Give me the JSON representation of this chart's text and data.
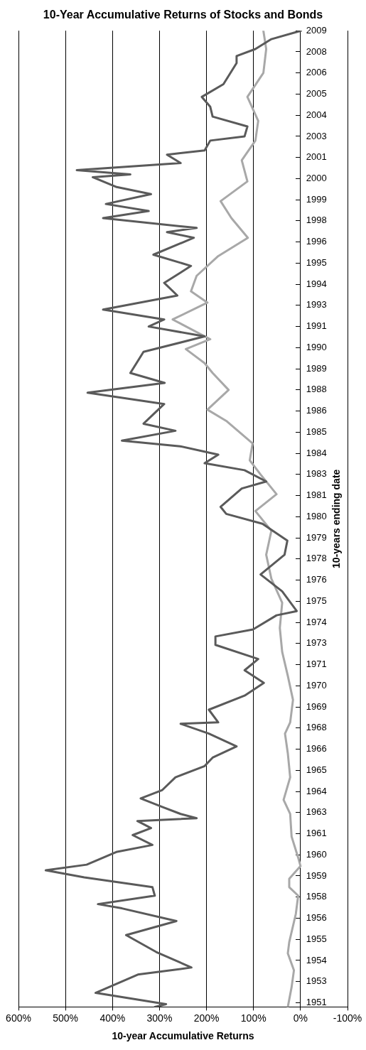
{
  "chart_data": {
    "type": "line",
    "orientation": "horizontal",
    "title": "10-Year Accumulative Returns of Stocks and Bonds",
    "ylabel": "10-years ending date",
    "xlabel": "10-year Accumulative Returns",
    "grid": "x",
    "legend": false,
    "marker": "none",
    "line_style": "solid",
    "ylim": [
      "1951-09",
      "2009-06"
    ],
    "yticks": [
      {
        "value": "1951-12",
        "label": "1951"
      },
      {
        "value": "1953-03",
        "label": "1953"
      },
      {
        "value": "1954-06",
        "label": "1954"
      },
      {
        "value": "1955-09",
        "label": "1955"
      },
      {
        "value": "1956-12",
        "label": "1956"
      },
      {
        "value": "1958-03",
        "label": "1958"
      },
      {
        "value": "1959-06",
        "label": "1959"
      },
      {
        "value": "1960-09",
        "label": "1960"
      },
      {
        "value": "1961-12",
        "label": "1961"
      },
      {
        "value": "1963-03",
        "label": "1963"
      },
      {
        "value": "1964-06",
        "label": "1964"
      },
      {
        "value": "1965-09",
        "label": "1965"
      },
      {
        "value": "1966-12",
        "label": "1966"
      },
      {
        "value": "1968-03",
        "label": "1968"
      },
      {
        "value": "1969-06",
        "label": "1969"
      },
      {
        "value": "1970-09",
        "label": "1970"
      },
      {
        "value": "1971-12",
        "label": "1971"
      },
      {
        "value": "1973-03",
        "label": "1973"
      },
      {
        "value": "1974-06",
        "label": "1974"
      },
      {
        "value": "1975-09",
        "label": "1975"
      },
      {
        "value": "1976-12",
        "label": "1976"
      },
      {
        "value": "1978-03",
        "label": "1978"
      },
      {
        "value": "1979-06",
        "label": "1979"
      },
      {
        "value": "1980-09",
        "label": "1980"
      },
      {
        "value": "1981-12",
        "label": "1981"
      },
      {
        "value": "1983-03",
        "label": "1983"
      },
      {
        "value": "1984-06",
        "label": "1984"
      },
      {
        "value": "1985-09",
        "label": "1985"
      },
      {
        "value": "1986-12",
        "label": "1986"
      },
      {
        "value": "1988-03",
        "label": "1988"
      },
      {
        "value": "1989-06",
        "label": "1989"
      },
      {
        "value": "1990-09",
        "label": "1990"
      },
      {
        "value": "1991-12",
        "label": "1991"
      },
      {
        "value": "1993-03",
        "label": "1993"
      },
      {
        "value": "1994-06",
        "label": "1994"
      },
      {
        "value": "1995-09",
        "label": "1995"
      },
      {
        "value": "1996-12",
        "label": "1996"
      },
      {
        "value": "1998-03",
        "label": "1998"
      },
      {
        "value": "1999-06",
        "label": "1999"
      },
      {
        "value": "2000-09",
        "label": "2000"
      },
      {
        "value": "2001-12",
        "label": "2001"
      },
      {
        "value": "2003-03",
        "label": "2003"
      },
      {
        "value": "2004-06",
        "label": "2004"
      },
      {
        "value": "2005-09",
        "label": "2005"
      },
      {
        "value": "2006-12",
        "label": "2006"
      },
      {
        "value": "2008-03",
        "label": "2008"
      },
      {
        "value": "2009-06",
        "label": "2009"
      }
    ],
    "xlim": [
      600,
      -100
    ],
    "xticks": [
      {
        "value": 600,
        "label": "600%"
      },
      {
        "value": 500,
        "label": "500%"
      },
      {
        "value": 400,
        "label": "400%"
      },
      {
        "value": 300,
        "label": "300%"
      },
      {
        "value": 200,
        "label": "200%"
      },
      {
        "value": 100,
        "label": "100%"
      },
      {
        "value": 0,
        "label": "0%"
      },
      {
        "value": -100,
        "label": "-100%"
      }
    ],
    "series": [
      {
        "color": "#5a5a5a",
        "x": [
          "1951-09",
          "1951-11",
          "1952-07",
          "1953-08",
          "1954-01",
          "1954-12",
          "1955-12",
          "1956-10",
          "1957-07",
          "1957-10",
          "1958-04",
          "1958-10",
          "1959-05",
          "1959-10",
          "1960-02",
          "1960-11",
          "1961-04",
          "1961-11",
          "1962-04",
          "1962-09",
          "1962-11",
          "1963-02",
          "1963-07",
          "1964-01",
          "1964-07",
          "1965-04",
          "1965-12",
          "1966-06",
          "1967-02",
          "1967-11",
          "1968-06",
          "1968-07",
          "1969-04",
          "1970-02",
          "1970-11",
          "1971-08",
          "1972-04",
          "1973-02",
          "1973-08",
          "1974-01",
          "1974-11",
          "1975-02",
          "1976-04",
          "1977-04",
          "1978-06",
          "1979-04",
          "1980-04",
          "1980-11",
          "1981-04",
          "1982-05",
          "1982-10",
          "1983-06",
          "1983-11",
          "1984-05",
          "1984-11",
          "1985-03",
          "1985-10",
          "1986-03",
          "1987-05",
          "1988-01",
          "1988-08",
          "1989-03",
          "1990-06",
          "1991-05",
          "1991-12",
          "1992-05",
          "1992-12",
          "1993-10",
          "1994-07",
          "1995-07",
          "1996-03",
          "1997-03",
          "1997-07",
          "1997-10",
          "1998-05",
          "1998-10",
          "1999-03",
          "1999-10",
          "2000-03",
          "2000-10",
          "2000-12",
          "2001-03",
          "2001-08",
          "2002-02",
          "2002-05",
          "2002-12",
          "2003-03",
          "2003-10",
          "2004-05",
          "2004-12",
          "2005-07",
          "2006-04",
          "2007-07",
          "2007-12",
          "2008-05",
          "2008-12",
          "2009-06"
        ],
        "values": [
          310,
          286,
          436,
          346,
          232,
          307,
          371,
          264,
          380,
          431,
          310,
          315,
          460,
          542,
          455,
          392,
          315,
          357,
          318,
          347,
          221,
          255,
          294,
          340,
          294,
          266,
          204,
          187,
          136,
          195,
          255,
          175,
          195,
          119,
          78,
          119,
          90,
          181,
          181,
          101,
          51,
          8,
          39,
          85,
          34,
          28,
          81,
          158,
          170,
          125,
          73,
          119,
          204,
          175,
          256,
          380,
          266,
          334,
          290,
          453,
          289,
          362,
          334,
          204,
          323,
          290,
          420,
          262,
          290,
          233,
          313,
          227,
          284,
          221,
          420,
          323,
          414,
          318,
          391,
          442,
          362,
          476,
          255,
          284,
          204,
          192,
          119,
          113,
          187,
          192,
          210,
          164,
          136,
          136,
          96,
          62,
          -1
        ]
      },
      {
        "color": "#a8a8a8",
        "x": [
          "1951-09",
          "1952-11",
          "1953-11",
          "1954-11",
          "1955-07",
          "1957-03",
          "1958-04",
          "1958-10",
          "1959-04",
          "1960-01",
          "1960-07",
          "1961-10",
          "1963-02",
          "1963-12",
          "1965-04",
          "1966-09",
          "1967-11",
          "1968-07",
          "1969-11",
          "1971-04",
          "1972-09",
          "1974-02",
          "1975-08",
          "1977-01",
          "1978-06",
          "1979-11",
          "1981-01",
          "1982-01",
          "1983-03",
          "1984-01",
          "1985-01",
          "1986-05",
          "1987-01",
          "1988-03",
          "1989-03",
          "1989-10",
          "1990-08",
          "1991-03",
          "1992-05",
          "1993-05",
          "1994-01",
          "1994-12",
          "1996-02",
          "1997-03",
          "1998-05",
          "1999-05",
          "2000-07",
          "2001-10",
          "2002-12",
          "2004-02",
          "2005-07",
          "2006-12",
          "2008-05",
          "2009-06"
        ],
        "values": [
          27,
          19,
          14,
          27,
          24,
          10,
          5,
          24,
          24,
          0,
          5,
          19,
          22,
          36,
          22,
          27,
          33,
          22,
          16,
          27,
          39,
          44,
          39,
          62,
          73,
          62,
          96,
          51,
          85,
          108,
          102,
          158,
          198,
          153,
          187,
          204,
          244,
          192,
          272,
          198,
          233,
          221,
          175,
          112,
          147,
          170,
          113,
          125,
          96,
          90,
          113,
          79,
          73,
          79
        ]
      }
    ]
  }
}
